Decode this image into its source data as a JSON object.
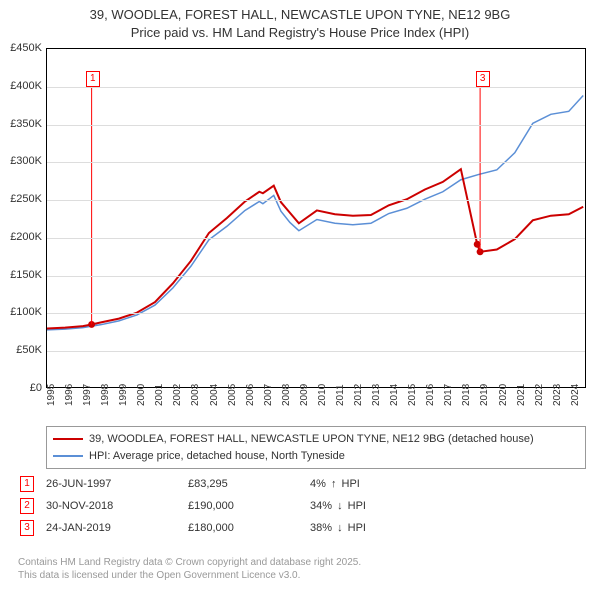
{
  "title_line1": "39, WOODLEA, FOREST HALL, NEWCASTLE UPON TYNE, NE12 9BG",
  "title_line2": "Price paid vs. HM Land Registry's House Price Index (HPI)",
  "chart": {
    "type": "line",
    "xlim": [
      1995,
      2024.9
    ],
    "ylim": [
      0,
      450000
    ],
    "ytick_vals": [
      0,
      50000,
      100000,
      150000,
      200000,
      250000,
      300000,
      350000,
      400000,
      450000
    ],
    "ytick_labels": [
      "£0",
      "£50K",
      "£100K",
      "£150K",
      "£200K",
      "£250K",
      "£300K",
      "£350K",
      "£400K",
      "£450K"
    ],
    "xtick_vals": [
      1995,
      1996,
      1997,
      1998,
      1999,
      2000,
      2001,
      2002,
      2003,
      2004,
      2005,
      2006,
      2007,
      2008,
      2009,
      2010,
      2011,
      2012,
      2013,
      2014,
      2015,
      2016,
      2017,
      2018,
      2019,
      2020,
      2021,
      2022,
      2023,
      2024
    ],
    "grid_color": "#dddddd",
    "background_color": "#ffffff",
    "series": {
      "property": {
        "color": "#cc0000",
        "width": 2,
        "label": "39, WOODLEA, FOREST HALL, NEWCASTLE UPON TYNE, NE12 9BG (detached house)",
        "x": [
          1995,
          1996,
          1997,
          1997.48,
          1998,
          1999,
          2000,
          2001,
          2002,
          2003,
          2004,
          2005,
          2006,
          2006.8,
          2007,
          2007.6,
          2008,
          2008.5,
          2009,
          2010,
          2011,
          2012,
          2013,
          2014,
          2015,
          2016,
          2017,
          2018,
          2018.91,
          2019.07,
          2020,
          2021,
          2022,
          2023,
          2024,
          2024.8
        ],
        "y": [
          78000,
          79000,
          81000,
          83295,
          86000,
          91000,
          99000,
          113000,
          138000,
          168000,
          205000,
          225000,
          247000,
          260000,
          258000,
          268000,
          246000,
          232000,
          218000,
          235000,
          230000,
          228000,
          229000,
          242000,
          250000,
          263000,
          273000,
          290000,
          190000,
          180000,
          183000,
          197000,
          222000,
          228000,
          230000,
          240000
        ]
      },
      "hpi": {
        "color": "#5b8fd6",
        "width": 1.5,
        "label": "HPI: Average price, detached house, North Tyneside",
        "x": [
          1995,
          1996,
          1997,
          1998,
          1999,
          2000,
          2001,
          2002,
          2003,
          2004,
          2005,
          2006,
          2006.8,
          2007,
          2007.6,
          2008,
          2008.5,
          2009,
          2010,
          2011,
          2012,
          2013,
          2014,
          2015,
          2016,
          2017,
          2018,
          2019,
          2020,
          2021,
          2022,
          2023,
          2024,
          2024.8
        ],
        "y": [
          76000,
          77000,
          79000,
          83000,
          88000,
          96000,
          109000,
          132000,
          161000,
          196000,
          214000,
          235000,
          247000,
          244000,
          255000,
          234000,
          219000,
          208000,
          223000,
          218000,
          216000,
          218000,
          231000,
          238000,
          250000,
          260000,
          276000,
          283000,
          289000,
          312000,
          351000,
          363000,
          367000,
          388000
        ]
      }
    },
    "sale_markers": [
      {
        "n": "1",
        "x": 1997.48,
        "y": 83295,
        "box_x": 1997.48,
        "box_y": 412000
      },
      {
        "n": "2",
        "x": 2018.91,
        "y": 190000,
        "box_x": null,
        "box_y": null
      },
      {
        "n": "3",
        "x": 2019.07,
        "y": 180000,
        "box_x": 2019.07,
        "box_y": 412000
      }
    ]
  },
  "legend": {
    "s1_label": "39, WOODLEA, FOREST HALL, NEWCASTLE UPON TYNE, NE12 9BG (detached house)",
    "s2_label": "HPI: Average price, detached house, North Tyneside",
    "s1_color": "#cc0000",
    "s2_color": "#5b8fd6"
  },
  "sales": [
    {
      "n": "1",
      "date": "26-JUN-1997",
      "price": "£83,295",
      "pct": "4%",
      "dir": "↑",
      "tag": "HPI"
    },
    {
      "n": "2",
      "date": "30-NOV-2018",
      "price": "£190,000",
      "pct": "34%",
      "dir": "↓",
      "tag": "HPI"
    },
    {
      "n": "3",
      "date": "24-JAN-2019",
      "price": "£180,000",
      "pct": "38%",
      "dir": "↓",
      "tag": "HPI"
    }
  ],
  "footnote_line1": "Contains HM Land Registry data © Crown copyright and database right 2025.",
  "footnote_line2": "This data is licensed under the Open Government Licence v3.0."
}
